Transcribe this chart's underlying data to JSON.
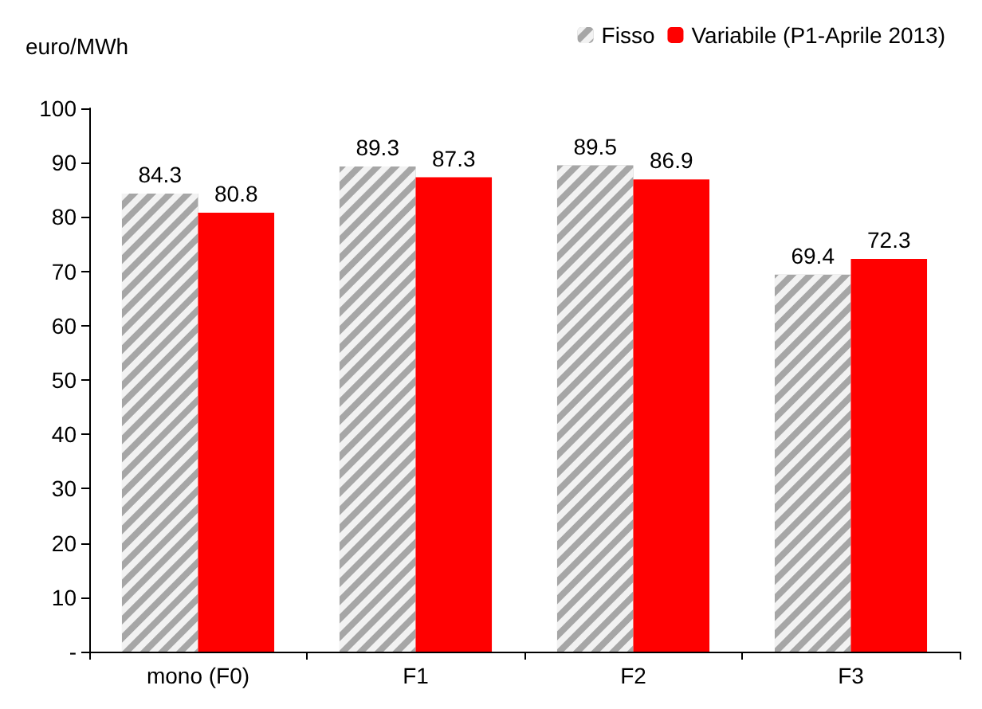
{
  "chart_data": {
    "type": "bar",
    "ylabel": "euro/MWh",
    "categories": [
      "mono (F0)",
      "F1",
      "F2",
      "F3"
    ],
    "series": [
      {
        "name": "Fisso",
        "color": "#a6a6a6",
        "values": [
          84.3,
          89.3,
          89.5,
          69.4
        ]
      },
      {
        "name": "Variabile (P1-Aprile 2013)",
        "color": "#ff0000",
        "values": [
          80.8,
          87.3,
          86.9,
          72.3
        ]
      }
    ],
    "ylim": [
      0,
      100
    ],
    "yticks": [
      {
        "value": 0,
        "label": "-"
      },
      10,
      20,
      30,
      40,
      50,
      60,
      70,
      80,
      90,
      100
    ],
    "data_labels": true,
    "legend": "top right",
    "grid": false
  }
}
